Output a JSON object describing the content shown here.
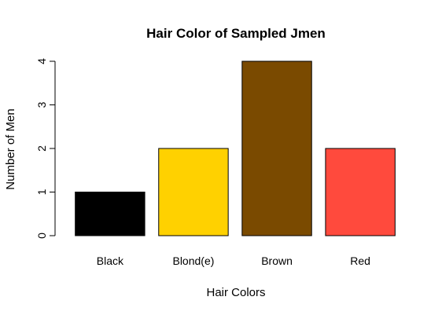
{
  "chart_data": {
    "type": "bar",
    "title": "Hair Color of Sampled Jmen",
    "xlabel": "Hair Colors",
    "ylabel": "Number of Men",
    "categories": [
      "Black",
      "Blond(e)",
      "Brown",
      "Red"
    ],
    "values": [
      1,
      2,
      4,
      2
    ],
    "colors": [
      "#000000",
      "#FFD100",
      "#7A4A00",
      "#FF4A3D"
    ],
    "ylim": [
      0,
      4
    ],
    "yticks": [
      "0",
      "1",
      "2",
      "3",
      "4"
    ],
    "grid": false,
    "legend": "none"
  }
}
